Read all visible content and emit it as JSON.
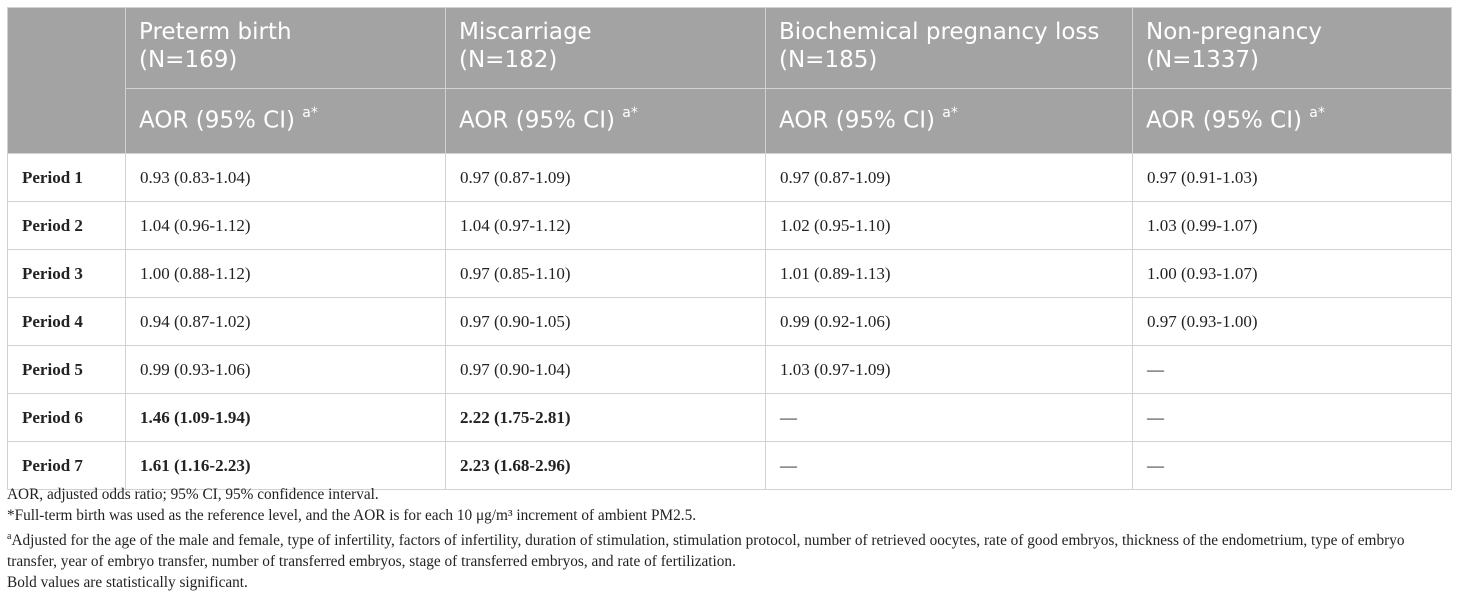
{
  "table": {
    "columns": [
      {
        "name": "Preterm birth",
        "n": "(N=169)",
        "stat": "AOR (95% CI)"
      },
      {
        "name": "Miscarriage",
        "n": "(N=182)",
        "stat": "AOR (95% CI)"
      },
      {
        "name": "Biochemical pregnancy loss",
        "n": "(N=185)",
        "stat": "AOR (95% CI)"
      },
      {
        "name": "Non-pregnancy",
        "n": "(N=1337)",
        "stat": "AOR (95% CI)"
      }
    ],
    "stat_sup": "a*",
    "rows": [
      {
        "label": "Period 1",
        "cells": [
          "0.93 (0.83-1.04)",
          "0.97 (0.87-1.09)",
          "0.97 (0.87-1.09)",
          "0.97 (0.91-1.03)"
        ]
      },
      {
        "label": "Period 2",
        "cells": [
          "1.04 (0.96-1.12)",
          "1.04 (0.97-1.12)",
          "1.02 (0.95-1.10)",
          "1.03 (0.99-1.07)"
        ]
      },
      {
        "label": "Period 3",
        "cells": [
          "1.00 (0.88-1.12)",
          "0.97 (0.85-1.10)",
          "1.01 (0.89-1.13)",
          "1.00 (0.93-1.07)"
        ]
      },
      {
        "label": "Period 4",
        "cells": [
          "0.94 (0.87-1.02)",
          "0.97 (0.90-1.05)",
          "0.99 (0.92-1.06)",
          "0.97 (0.93-1.00)"
        ]
      },
      {
        "label": "Period 5",
        "cells": [
          "0.99 (0.93-1.06)",
          "0.97 (0.90-1.04)",
          "1.03 (0.97-1.09)",
          "—"
        ]
      },
      {
        "label": "Period 6",
        "cells": [
          "1.46 (1.09-1.94)",
          "2.22 (1.75-2.81)",
          "—",
          "—"
        ]
      },
      {
        "label": "Period 7",
        "cells": [
          "1.61 (1.16-2.23)",
          "2.23 (1.68-2.96)",
          "—",
          "—"
        ]
      }
    ]
  },
  "notes": {
    "abbrev": "AOR, adjusted odds ratio; 95% CI, 95% confidence interval.",
    "star": "*Full-term birth was used as the reference level, and the AOR is for each 10 μg/m³ increment of ambient PM2.5.",
    "adjusted_sup": "a",
    "adjusted": "Adjusted for the age of the male and female, type of infertility, factors of infertility, duration of stimulation, stimulation protocol, number of retrieved oocytes, rate of good embryos, thickness of the endometrium, type of embryo transfer, year of embryo transfer, number of transferred embryos, stage of transferred embryos, and rate of fertilization.",
    "bold": "Bold values are statistically significant."
  },
  "colors": {
    "header_bg": "#a3a3a3",
    "border": "#d2d2d2"
  }
}
